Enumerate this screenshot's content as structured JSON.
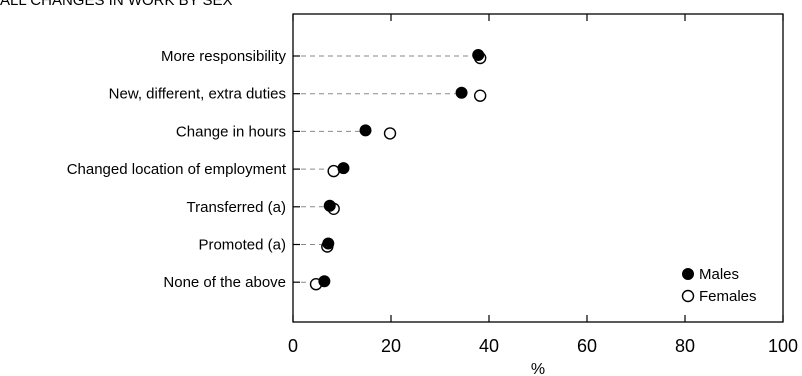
{
  "chart_data": {
    "type": "scatter",
    "title": "ALL CHANGES IN WORK BY SEX",
    "xlabel": "%",
    "ylabel": "",
    "xlim": [
      0,
      100
    ],
    "xticks": [
      "0",
      "20",
      "40",
      "60",
      "80",
      "100"
    ],
    "grid": false,
    "legend_position": "bottom-right",
    "categories": [
      "More responsibility",
      "New, different, extra duties",
      "Change in hours",
      "Changed location of employment",
      "Transferred (a)",
      "Promoted (a)",
      "None of the above"
    ],
    "series": [
      {
        "name": "Males",
        "marker": "filled-circle",
        "values": [
          37.8,
          34.4,
          14.8,
          10.3,
          7.5,
          7.2,
          6.4
        ]
      },
      {
        "name": "Females",
        "marker": "open-circle",
        "values": [
          38.2,
          38.2,
          19.8,
          8.3,
          8.3,
          7.0,
          4.7
        ]
      }
    ]
  }
}
